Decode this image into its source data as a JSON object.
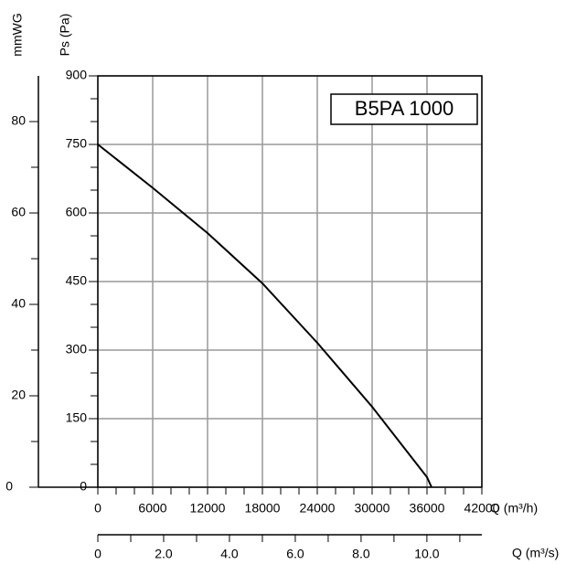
{
  "chart_data": {
    "type": "line",
    "annotation": "B5PA 1000",
    "ylabel": "Ps (Pa)",
    "y2label": "mmWG",
    "xlabel": "Q (m³/h)",
    "x2label": "Q (m³/s)",
    "xlim": [
      0,
      42000
    ],
    "xticks": [
      0,
      6000,
      12000,
      18000,
      24000,
      30000,
      36000,
      42000
    ],
    "xminorticks": [
      2000,
      4000,
      8000,
      10000,
      14000,
      16000,
      20000,
      22000,
      26000,
      28000,
      32000,
      34000,
      38000,
      40000
    ],
    "ylim": [
      0,
      900
    ],
    "yticks": [
      0,
      150,
      300,
      450,
      600,
      750,
      900
    ],
    "yminorticks": [
      50,
      100,
      200,
      250,
      350,
      400,
      500,
      550,
      650,
      700,
      800,
      850
    ],
    "y2lim": [
      0,
      90
    ],
    "y2ticks": [
      0,
      20,
      40,
      60,
      80
    ],
    "y2minorticks": [
      10,
      30,
      50,
      70
    ],
    "x2lim": [
      0,
      11.67
    ],
    "x2ticks": [
      0,
      {
        "value": 2,
        "label": "2.0"
      },
      {
        "value": 4,
        "label": "4.0"
      },
      {
        "value": 6,
        "label": "6.0"
      },
      {
        "value": 8,
        "label": "8.0"
      },
      {
        "value": 10,
        "label": "10.0"
      }
    ],
    "x2minorticks": [
      1,
      3,
      5,
      7,
      9,
      11
    ],
    "grid": true,
    "series": [
      {
        "color": "#000000",
        "x": [
          0,
          6000,
          12000,
          18000,
          24000,
          30000,
          36000,
          36500
        ],
        "values": [
          750,
          655,
          556,
          446,
          316,
          176,
          22,
          0
        ]
      }
    ]
  }
}
